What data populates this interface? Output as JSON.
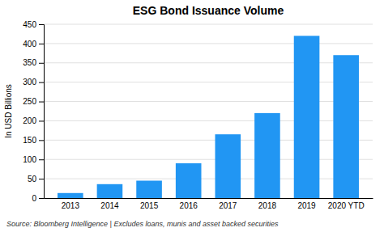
{
  "chart_data": {
    "type": "bar",
    "title": "ESG Bond Issuance Volume",
    "categories": [
      "2013",
      "2014",
      "2015",
      "2016",
      "2017",
      "2018",
      "2019",
      "2020 YTD"
    ],
    "values": [
      13,
      36,
      45,
      90,
      165,
      220,
      420,
      370
    ],
    "color": "#2196F3",
    "ylabel": "In USD Billions",
    "ylim": [
      0,
      450
    ],
    "yticks": [
      0,
      50,
      100,
      150,
      200,
      250,
      300,
      350,
      400,
      450
    ],
    "grid": true,
    "source": "Source: Bloomberg Intelligence | Excludes loans, munis and asset backed securities"
  }
}
